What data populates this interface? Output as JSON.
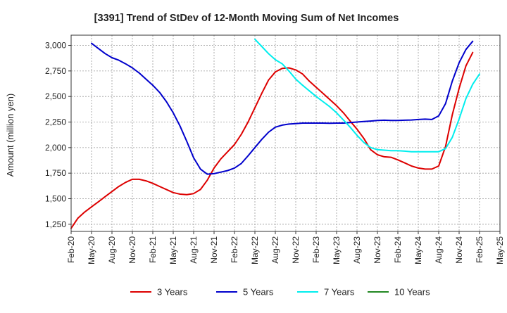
{
  "chart_data": {
    "type": "line",
    "title": "[3391]  Trend of StDev of 12-Month Moving Sum of Net Incomes",
    "xlabel": "",
    "ylabel": "Amount (million yen)",
    "x_tick_labels": [
      "Feb-20",
      "May-20",
      "Aug-20",
      "Nov-20",
      "Feb-21",
      "May-21",
      "Aug-21",
      "Nov-21",
      "Feb-22",
      "May-22",
      "Aug-22",
      "Nov-22",
      "Feb-23",
      "May-23",
      "Aug-23",
      "Nov-23",
      "Feb-24",
      "May-24",
      "Aug-24",
      "Nov-24",
      "Feb-25",
      "May-25"
    ],
    "y_ticks": [
      1250,
      1500,
      1750,
      2000,
      2250,
      2500,
      2750,
      3000
    ],
    "y_tick_labels": [
      "1,250",
      "1,500",
      "1,750",
      "2,000",
      "2,250",
      "2,500",
      "2,750",
      "3,000"
    ],
    "ylim": [
      1180,
      3100
    ],
    "grid": true,
    "legend_position": "bottom",
    "x_dates": [
      "2020-02",
      "2020-03",
      "2020-04",
      "2020-05",
      "2020-06",
      "2020-07",
      "2020-08",
      "2020-09",
      "2020-10",
      "2020-11",
      "2020-12",
      "2021-01",
      "2021-02",
      "2021-03",
      "2021-04",
      "2021-05",
      "2021-06",
      "2021-07",
      "2021-08",
      "2021-09",
      "2021-10",
      "2021-11",
      "2021-12",
      "2022-01",
      "2022-02",
      "2022-03",
      "2022-04",
      "2022-05",
      "2022-06",
      "2022-07",
      "2022-08",
      "2022-09",
      "2022-10",
      "2022-11",
      "2022-12",
      "2023-01",
      "2023-02",
      "2023-03",
      "2023-04",
      "2023-05",
      "2023-06",
      "2023-07",
      "2023-08",
      "2023-09",
      "2023-10",
      "2023-11",
      "2023-12",
      "2024-01",
      "2024-02",
      "2024-03",
      "2024-04",
      "2024-05",
      "2024-06",
      "2024-07",
      "2024-08",
      "2024-09",
      "2024-10",
      "2024-11",
      "2024-12",
      "2025-01",
      "2025-02"
    ],
    "series": [
      {
        "name": "3 Years",
        "color": "#dd0000",
        "values": [
          1210,
          1310,
          1370,
          1420,
          1470,
          1520,
          1570,
          1620,
          1660,
          1690,
          1690,
          1675,
          1650,
          1620,
          1590,
          1560,
          1545,
          1540,
          1550,
          1590,
          1680,
          1800,
          1890,
          1960,
          2030,
          2130,
          2250,
          2390,
          2530,
          2660,
          2740,
          2775,
          2780,
          2760,
          2720,
          2650,
          2590,
          2530,
          2470,
          2410,
          2340,
          2260,
          2180,
          2090,
          1980,
          1930,
          1910,
          1905,
          1880,
          1850,
          1820,
          1800,
          1790,
          1790,
          1820,
          2010,
          2320,
          2580,
          2800,
          2930,
          null
        ],
        "start_index": 0
      },
      {
        "name": "5 Years",
        "color": "#0000cc",
        "values": [
          3020,
          2970,
          2920,
          2880,
          2855,
          2820,
          2780,
          2730,
          2670,
          2610,
          2540,
          2450,
          2340,
          2210,
          2060,
          1900,
          1790,
          1740,
          1745,
          1760,
          1775,
          1800,
          1845,
          1920,
          2000,
          2080,
          2150,
          2200,
          2220,
          2230,
          2235,
          2240,
          2240,
          2240,
          2240,
          2238,
          2240,
          2240,
          2245,
          2250,
          2255,
          2260,
          2265,
          2268,
          2265,
          2265,
          2268,
          2270,
          2275,
          2278,
          2275,
          2310,
          2430,
          2650,
          2830,
          2960,
          3040
        ],
        "start_index": 3
      },
      {
        "name": "7 Years",
        "color": "#00eeee",
        "values": [
          3060,
          2990,
          2920,
          2860,
          2820,
          2750,
          2670,
          2610,
          2555,
          2500,
          2450,
          2400,
          2340,
          2270,
          2200,
          2120,
          2050,
          2000,
          1980,
          1975,
          1970,
          1970,
          1965,
          1960,
          1960,
          1960,
          1960,
          1960,
          1990,
          2100,
          2280,
          2480,
          2620,
          2720
        ],
        "start_index": 27
      },
      {
        "name": "10 Years",
        "color": "#228822",
        "values": [],
        "start_index": 0
      }
    ]
  }
}
